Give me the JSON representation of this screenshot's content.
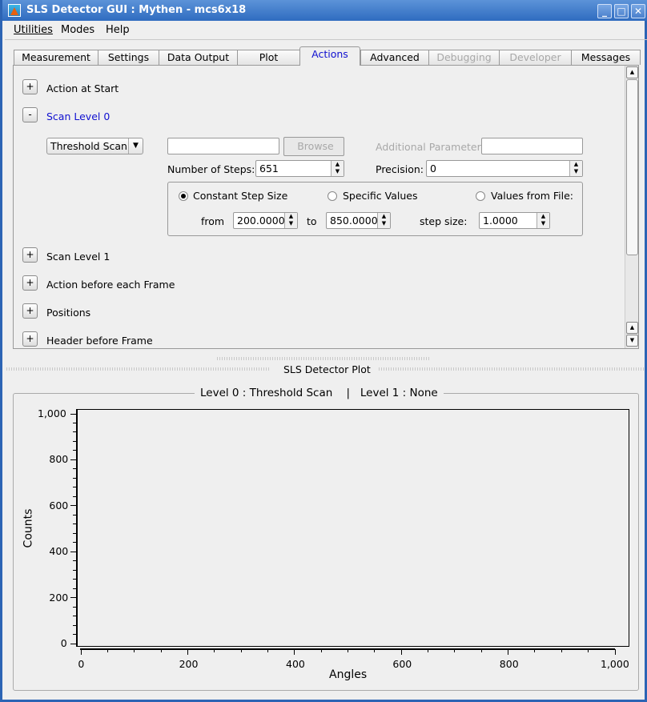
{
  "window": {
    "title": "SLS Detector GUI : Mythen - mcs6x18",
    "controls": [
      "minimize",
      "maximize",
      "close"
    ]
  },
  "menubar": [
    "Utilities",
    "Modes",
    "Help"
  ],
  "tabs": [
    {
      "label": "Measurement",
      "state": "normal"
    },
    {
      "label": "Settings",
      "state": "normal"
    },
    {
      "label": "Data Output",
      "state": "normal"
    },
    {
      "label": "Plot",
      "state": "normal"
    },
    {
      "label": "Actions",
      "state": "active"
    },
    {
      "label": "Advanced",
      "state": "normal"
    },
    {
      "label": "Debugging",
      "state": "disabled"
    },
    {
      "label": "Developer",
      "state": "disabled"
    },
    {
      "label": "Messages",
      "state": "normal"
    }
  ],
  "actions": {
    "sections": [
      {
        "toggle": "+",
        "label": "Action at Start"
      },
      {
        "toggle": "-",
        "label": "Scan Level 0"
      },
      {
        "toggle": "+",
        "label": "Scan Level 1"
      },
      {
        "toggle": "+",
        "label": "Action before each Frame"
      },
      {
        "toggle": "+",
        "label": "Positions"
      },
      {
        "toggle": "+",
        "label": "Header before Frame"
      }
    ],
    "scan0": {
      "type": "Threshold Scan",
      "file_value": "",
      "browse": "Browse",
      "additional_label": "Additional Parameter:",
      "additional_value": "",
      "steps_label": "Number of Steps:",
      "steps": "651",
      "precision_label": "Precision:",
      "precision": "0",
      "modes": [
        {
          "label": "Constant Step Size",
          "selected": true
        },
        {
          "label": "Specific Values",
          "selected": false
        },
        {
          "label": "Values from File:",
          "selected": false
        }
      ],
      "from_label": "from",
      "from": "200.0000",
      "to_label": "to",
      "to": "850.0000",
      "step_label": "step size:",
      "step": "1.0000"
    }
  },
  "plot": {
    "dock_title": "SLS Detector Plot",
    "group_title": "Level 0 : Threshold Scan    |   Level 1 : None"
  },
  "chart_data": {
    "type": "line",
    "title": "",
    "xlabel": "Angles",
    "ylabel": "Counts",
    "xlim": [
      0,
      1000
    ],
    "ylim": [
      0,
      1000
    ],
    "xticks": [
      "0",
      "200",
      "400",
      "600",
      "800",
      "1,000"
    ],
    "yticks": [
      "0",
      "200",
      "400",
      "600",
      "800",
      "1,000"
    ],
    "series": [],
    "grid": false
  }
}
